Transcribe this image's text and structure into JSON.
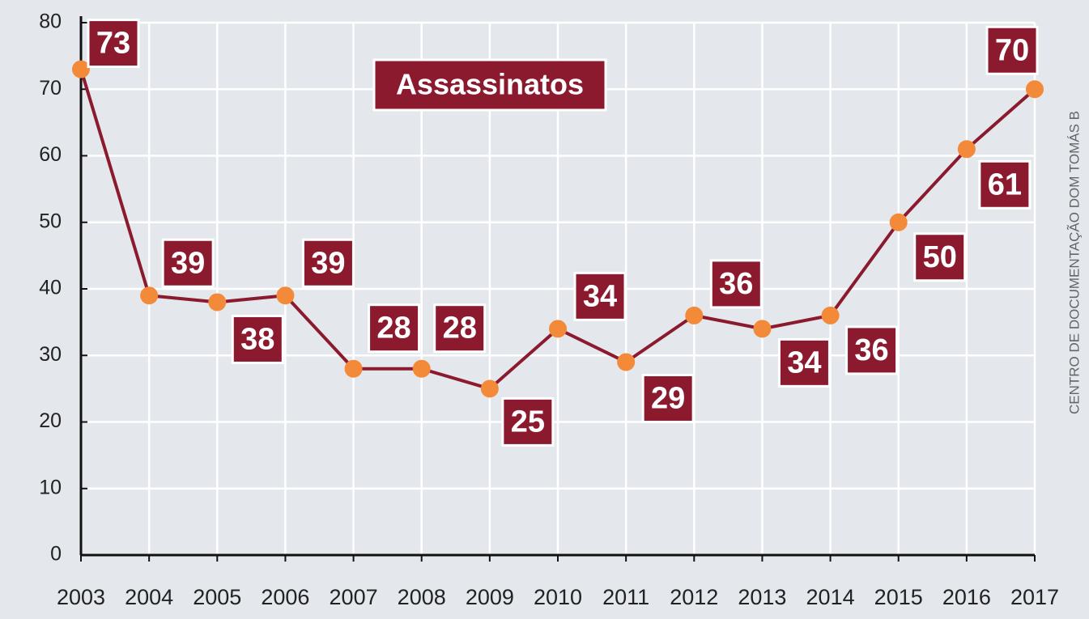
{
  "chart_data": {
    "type": "line",
    "title": "Assassinatos",
    "source": "CENTRO DE DOCUMENTAÇÃO DOM TOMÁS B",
    "categories": [
      "2003",
      "2004",
      "2005",
      "2006",
      "2007",
      "2008",
      "2009",
      "2010",
      "2011",
      "2012",
      "2013",
      "2014",
      "2015",
      "2016",
      "2017"
    ],
    "values": [
      73,
      39,
      38,
      39,
      28,
      28,
      25,
      34,
      29,
      36,
      34,
      36,
      50,
      61,
      70
    ],
    "color": "#8b1a2e",
    "marker_color": "#f28a3a",
    "label_color": "#8b1a2e",
    "ylim": [
      0,
      80
    ],
    "yticks": [
      0,
      10,
      20,
      30,
      40,
      50,
      60,
      70,
      80
    ],
    "grid": true
  }
}
